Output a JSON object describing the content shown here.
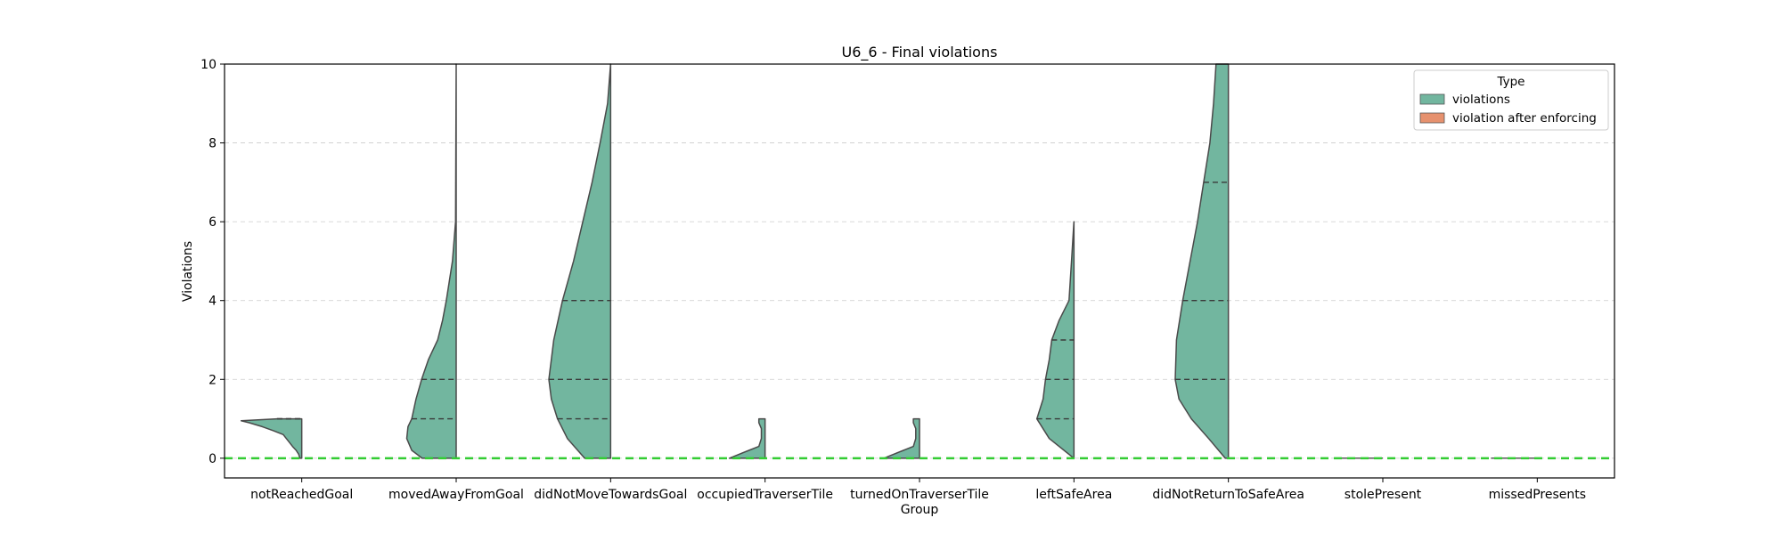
{
  "chart_data": {
    "type": "violin",
    "title": "U6_6 - Final violations",
    "xlabel": "Group",
    "ylabel": "Violations",
    "ylim": [
      -0.5,
      10
    ],
    "yticks": [
      0,
      2,
      4,
      6,
      8,
      10
    ],
    "grid": "horizontal dashed",
    "reference_line": {
      "y": 0,
      "color": "#33cc33",
      "style": "dashed"
    },
    "categories": [
      "notReachedGoal",
      "movedAwayFromGoal",
      "didNotMoveTowardsGoal",
      "occupiedTraverserTile",
      "turnedOnTraverserTile",
      "leftSafeArea",
      "didNotReturnToSafeArea",
      "stolePresent",
      "missedPresents"
    ],
    "legend": {
      "title": "Type",
      "position": "top-right",
      "entries": [
        {
          "label": "violations",
          "color": "#72b69f"
        },
        {
          "label": "violation after enforcing",
          "color": "#e6916e"
        }
      ]
    },
    "series": [
      {
        "name": "violations",
        "color": "#72b69f",
        "side": "left",
        "distributions": [
          {
            "category": "notReachedGoal",
            "min": 0,
            "max": 1,
            "quartiles": [
              1,
              1,
              1
            ],
            "density": [
              [
                0,
                0.03
              ],
              [
                0.1,
                0.05
              ],
              [
                0.2,
                0.09
              ],
              [
                0.3,
                0.15
              ],
              [
                0.4,
                0.2
              ],
              [
                0.5,
                0.25
              ],
              [
                0.6,
                0.3
              ],
              [
                0.7,
                0.46
              ],
              [
                0.8,
                0.64
              ],
              [
                0.9,
                0.85
              ],
              [
                0.95,
                0.98
              ],
              [
                1,
                0.4
              ]
            ]
          },
          {
            "category": "movedAwayFromGoal",
            "min": 0,
            "max": 10,
            "quartiles": [
              0,
              1,
              2
            ],
            "density": [
              [
                0,
                0.55
              ],
              [
                0.2,
                0.72
              ],
              [
                0.5,
                0.8
              ],
              [
                0.8,
                0.78
              ],
              [
                1,
                0.72
              ],
              [
                1.5,
                0.65
              ],
              [
                2,
                0.56
              ],
              [
                2.5,
                0.45
              ],
              [
                3,
                0.3
              ],
              [
                3.5,
                0.22
              ],
              [
                4,
                0.16
              ],
              [
                5,
                0.06
              ],
              [
                6,
                0.01
              ],
              [
                10,
                0
              ]
            ]
          },
          {
            "category": "didNotMoveTowardsGoal",
            "min": 0,
            "max": 10,
            "quartiles": [
              1,
              2,
              4
            ],
            "density": [
              [
                0,
                0.42
              ],
              [
                0.5,
                0.7
              ],
              [
                1,
                0.86
              ],
              [
                1.5,
                0.96
              ],
              [
                2,
                1.0
              ],
              [
                3,
                0.92
              ],
              [
                4,
                0.78
              ],
              [
                5,
                0.6
              ],
              [
                6,
                0.45
              ],
              [
                7,
                0.3
              ],
              [
                8,
                0.17
              ],
              [
                9,
                0.05
              ],
              [
                10,
                0
              ]
            ]
          },
          {
            "category": "occupiedTraverserTile",
            "min": 0,
            "max": 1,
            "quartiles": [
              0,
              0,
              0
            ],
            "density": [
              [
                0,
                0.58
              ],
              [
                0.1,
                0.42
              ],
              [
                0.2,
                0.26
              ],
              [
                0.3,
                0.1
              ],
              [
                0.5,
                0.06
              ],
              [
                0.75,
                0.06
              ],
              [
                0.9,
                0.1
              ],
              [
                1,
                0.1
              ]
            ]
          },
          {
            "category": "turnedOnTraverserTile",
            "min": 0,
            "max": 1,
            "quartiles": [
              0,
              0,
              0
            ],
            "density": [
              [
                0,
                0.58
              ],
              [
                0.1,
                0.42
              ],
              [
                0.2,
                0.26
              ],
              [
                0.3,
                0.1
              ],
              [
                0.5,
                0.06
              ],
              [
                0.75,
                0.06
              ],
              [
                0.9,
                0.1
              ],
              [
                1,
                0.1
              ]
            ]
          },
          {
            "category": "leftSafeArea",
            "min": 0,
            "max": 6,
            "quartiles": [
              1,
              2,
              3
            ],
            "density": [
              [
                0,
                0
              ],
              [
                0.5,
                0.4
              ],
              [
                1,
                0.6
              ],
              [
                1.5,
                0.5
              ],
              [
                2,
                0.46
              ],
              [
                2.5,
                0.4
              ],
              [
                3,
                0.36
              ],
              [
                3.5,
                0.24
              ],
              [
                4,
                0.08
              ],
              [
                5,
                0.04
              ],
              [
                6,
                0
              ]
            ]
          },
          {
            "category": "didNotReturnToSafeArea",
            "min": 0,
            "max": 10,
            "quartiles": [
              2,
              4,
              7
            ],
            "density": [
              [
                0,
                0.05
              ],
              [
                0.5,
                0.32
              ],
              [
                1,
                0.6
              ],
              [
                1.5,
                0.8
              ],
              [
                2,
                0.86
              ],
              [
                3,
                0.84
              ],
              [
                4,
                0.74
              ],
              [
                5,
                0.62
              ],
              [
                6,
                0.5
              ],
              [
                7,
                0.4
              ],
              [
                8,
                0.3
              ],
              [
                9,
                0.24
              ],
              [
                10,
                0.2
              ]
            ]
          },
          {
            "category": "stolePresent",
            "min": 0,
            "max": 0,
            "quartiles": [
              0,
              0,
              0
            ],
            "density": [
              [
                0,
                0.75
              ]
            ]
          },
          {
            "category": "missedPresents",
            "min": 0,
            "max": 0,
            "quartiles": [
              0,
              0,
              0
            ],
            "density": [
              [
                0,
                0.75
              ]
            ]
          }
        ]
      },
      {
        "name": "violation after enforcing",
        "color": "#e6916e",
        "side": "right",
        "distributions": []
      }
    ]
  }
}
